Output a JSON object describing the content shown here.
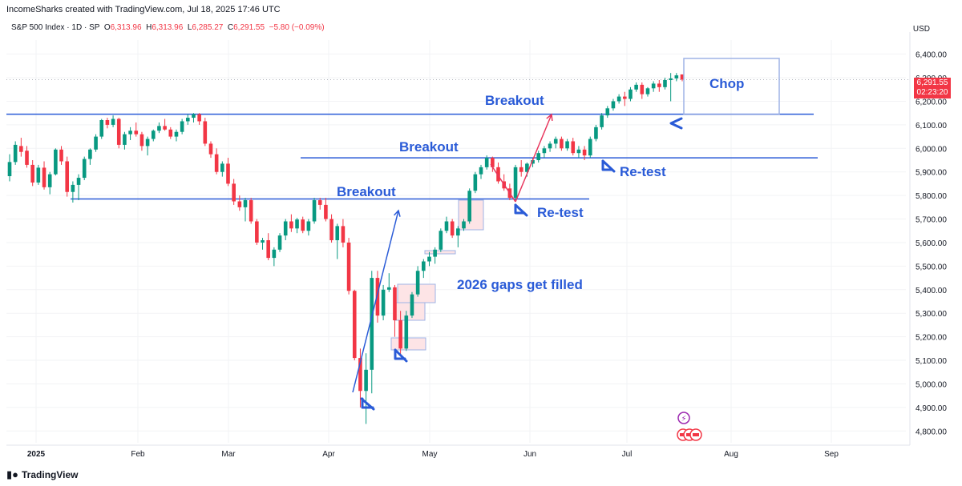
{
  "header": {
    "attribution": "IncomeSharks created with TradingView.com, Jul 18, 2025 17:46 UTC"
  },
  "symbol_bar": {
    "symbol": "S&P 500 Index · 1D · SP",
    "open_label": "O",
    "open": "6,313.96",
    "high_label": "H",
    "high": "6,313.96",
    "low_label": "L",
    "low": "6,285.27",
    "close_label": "C",
    "close": "6,291.55",
    "change": "−5.80 (−0.09%)"
  },
  "currency": "USD",
  "last_price": {
    "value": "6,291.55",
    "countdown": "02:23:20",
    "color": "#f23645"
  },
  "branding": {
    "name": "TradingView"
  },
  "colors": {
    "up": "#089981",
    "down": "#f23645",
    "annotation": "#2a5bd7",
    "arrow_red": "#e8365d"
  },
  "chart_data": {
    "type": "candlestick",
    "ylim": [
      4750,
      6460
    ],
    "y_ticks": [
      "6,400.00",
      "6,300.00",
      "6,200.00",
      "6,100.00",
      "6,000.00",
      "5,900.00",
      "5,800.00",
      "5,700.00",
      "5,600.00",
      "5,500.00",
      "5,400.00",
      "5,300.00",
      "5,200.00",
      "5,100.00",
      "5,000.00",
      "4,900.00",
      "4,800.00"
    ],
    "x_ticks": [
      "2025",
      "Feb",
      "Mar",
      "Apr",
      "May",
      "Jun",
      "Jul",
      "Aug",
      "Sep"
    ],
    "horizontal_levels": [
      6145,
      5960,
      5785
    ],
    "annotations": [
      {
        "text": "Chop"
      },
      {
        "text": "Breakout"
      },
      {
        "text": "Breakout"
      },
      {
        "text": "Breakout"
      },
      {
        "text": "Re-test"
      },
      {
        "text": "Re-test"
      },
      {
        "text": "2026 gaps get filled"
      }
    ],
    "candles": [
      [
        5882,
        5975,
        5860,
        5942
      ],
      [
        5942,
        6030,
        5930,
        6015
      ],
      [
        6010,
        6045,
        5965,
        5985
      ],
      [
        5990,
        6010,
        5918,
        5930
      ],
      [
        5930,
        5950,
        5840,
        5855
      ],
      [
        5855,
        5930,
        5845,
        5918
      ],
      [
        5918,
        5945,
        5825,
        5835
      ],
      [
        5835,
        5900,
        5805,
        5890
      ],
      [
        5890,
        6000,
        5885,
        5995
      ],
      [
        5995,
        6010,
        5930,
        5945
      ],
      [
        5945,
        5965,
        5795,
        5815
      ],
      [
        5815,
        5860,
        5770,
        5845
      ],
      [
        5845,
        5890,
        5780,
        5875
      ],
      [
        5875,
        5965,
        5865,
        5955
      ],
      [
        5955,
        6000,
        5930,
        5995
      ],
      [
        5995,
        6060,
        5985,
        6050
      ],
      [
        6050,
        6125,
        6040,
        6120
      ],
      [
        6120,
        6130,
        6085,
        6100
      ],
      [
        6100,
        6140,
        6090,
        6125
      ],
      [
        6125,
        6130,
        6000,
        6015
      ],
      [
        6015,
        6070,
        5995,
        6060
      ],
      [
        6060,
        6090,
        6035,
        6075
      ],
      [
        6075,
        6110,
        6050,
        6060
      ],
      [
        6060,
        6070,
        5990,
        6010
      ],
      [
        6010,
        6050,
        5970,
        6040
      ],
      [
        6040,
        6080,
        6030,
        6075
      ],
      [
        6075,
        6110,
        6065,
        6095
      ],
      [
        6095,
        6125,
        6075,
        6080
      ],
      [
        6080,
        6090,
        6040,
        6050
      ],
      [
        6050,
        6080,
        6030,
        6070
      ],
      [
        6070,
        6125,
        6060,
        6115
      ],
      [
        6115,
        6145,
        6100,
        6130
      ],
      [
        6130,
        6150,
        6110,
        6145
      ],
      [
        6145,
        6150,
        6100,
        6115
      ],
      [
        6115,
        6130,
        6010,
        6020
      ],
      [
        6020,
        6030,
        5960,
        5975
      ],
      [
        5975,
        6000,
        5890,
        5900
      ],
      [
        5900,
        5945,
        5880,
        5935
      ],
      [
        5935,
        5960,
        5840,
        5850
      ],
      [
        5850,
        5870,
        5760,
        5775
      ],
      [
        5775,
        5800,
        5735,
        5750
      ],
      [
        5750,
        5790,
        5690,
        5780
      ],
      [
        5780,
        5790,
        5680,
        5690
      ],
      [
        5690,
        5700,
        5590,
        5600
      ],
      [
        5600,
        5620,
        5570,
        5610
      ],
      [
        5610,
        5640,
        5525,
        5535
      ],
      [
        5535,
        5580,
        5500,
        5570
      ],
      [
        5570,
        5640,
        5560,
        5630
      ],
      [
        5630,
        5700,
        5610,
        5690
      ],
      [
        5690,
        5720,
        5645,
        5660
      ],
      [
        5660,
        5705,
        5640,
        5698
      ],
      [
        5698,
        5710,
        5640,
        5650
      ],
      [
        5650,
        5700,
        5630,
        5690
      ],
      [
        5690,
        5790,
        5680,
        5780
      ],
      [
        5780,
        5790,
        5740,
        5760
      ],
      [
        5760,
        5790,
        5690,
        5700
      ],
      [
        5700,
        5720,
        5600,
        5610
      ],
      [
        5610,
        5680,
        5530,
        5670
      ],
      [
        5670,
        5700,
        5580,
        5600
      ],
      [
        5600,
        5620,
        5380,
        5395
      ],
      [
        5395,
        5400,
        5100,
        5110
      ],
      [
        5110,
        5150,
        4900,
        4970
      ],
      [
        4970,
        5130,
        4830,
        5060
      ],
      [
        5060,
        5480,
        4960,
        5450
      ],
      [
        5450,
        5480,
        5260,
        5290
      ],
      [
        5290,
        5420,
        5270,
        5400
      ],
      [
        5400,
        5470,
        5390,
        5410
      ],
      [
        5410,
        5420,
        5200,
        5270
      ],
      [
        5270,
        5310,
        5120,
        5150
      ],
      [
        5150,
        5310,
        5140,
        5290
      ],
      [
        5290,
        5390,
        5280,
        5380
      ],
      [
        5380,
        5500,
        5370,
        5480
      ],
      [
        5480,
        5530,
        5450,
        5520
      ],
      [
        5520,
        5560,
        5500,
        5540
      ],
      [
        5540,
        5580,
        5510,
        5570
      ],
      [
        5570,
        5660,
        5560,
        5650
      ],
      [
        5650,
        5710,
        5640,
        5690
      ],
      [
        5690,
        5700,
        5620,
        5630
      ],
      [
        5630,
        5670,
        5580,
        5660
      ],
      [
        5660,
        5700,
        5650,
        5690
      ],
      [
        5690,
        5830,
        5680,
        5820
      ],
      [
        5820,
        5900,
        5810,
        5890
      ],
      [
        5890,
        5930,
        5870,
        5920
      ],
      [
        5920,
        5970,
        5910,
        5960
      ],
      [
        5960,
        5965,
        5900,
        5920
      ],
      [
        5920,
        5940,
        5850,
        5860
      ],
      [
        5860,
        5890,
        5820,
        5830
      ],
      [
        5830,
        5850,
        5780,
        5790
      ],
      [
        5790,
        5930,
        5780,
        5920
      ],
      [
        5920,
        5950,
        5880,
        5900
      ],
      [
        5900,
        5940,
        5880,
        5935
      ],
      [
        5935,
        5960,
        5920,
        5950
      ],
      [
        5950,
        5990,
        5940,
        5980
      ],
      [
        5980,
        6010,
        5960,
        6000
      ],
      [
        6000,
        6030,
        5985,
        6020
      ],
      [
        6020,
        6050,
        6000,
        6040
      ],
      [
        6040,
        6050,
        5990,
        6000
      ],
      [
        6000,
        6040,
        5990,
        6030
      ],
      [
        6030,
        6045,
        5970,
        5980
      ],
      [
        5980,
        6010,
        5960,
        5995
      ],
      [
        5995,
        6010,
        5950,
        5970
      ],
      [
        5970,
        6050,
        5960,
        6040
      ],
      [
        6040,
        6100,
        6030,
        6090
      ],
      [
        6090,
        6150,
        6080,
        6140
      ],
      [
        6140,
        6180,
        6130,
        6170
      ],
      [
        6170,
        6210,
        6160,
        6200
      ],
      [
        6200,
        6230,
        6190,
        6220
      ],
      [
        6220,
        6240,
        6180,
        6210
      ],
      [
        6210,
        6260,
        6200,
        6250
      ],
      [
        6250,
        6280,
        6240,
        6270
      ],
      [
        6270,
        6280,
        6210,
        6230
      ],
      [
        6230,
        6260,
        6220,
        6255
      ],
      [
        6255,
        6285,
        6240,
        6275
      ],
      [
        6275,
        6290,
        6240,
        6260
      ],
      [
        6260,
        6300,
        6250,
        6290
      ],
      [
        6290,
        6320,
        6200,
        6297
      ],
      [
        6297,
        6320,
        6285,
        6310
      ],
      [
        6314,
        6314,
        6285,
        6292
      ]
    ]
  }
}
